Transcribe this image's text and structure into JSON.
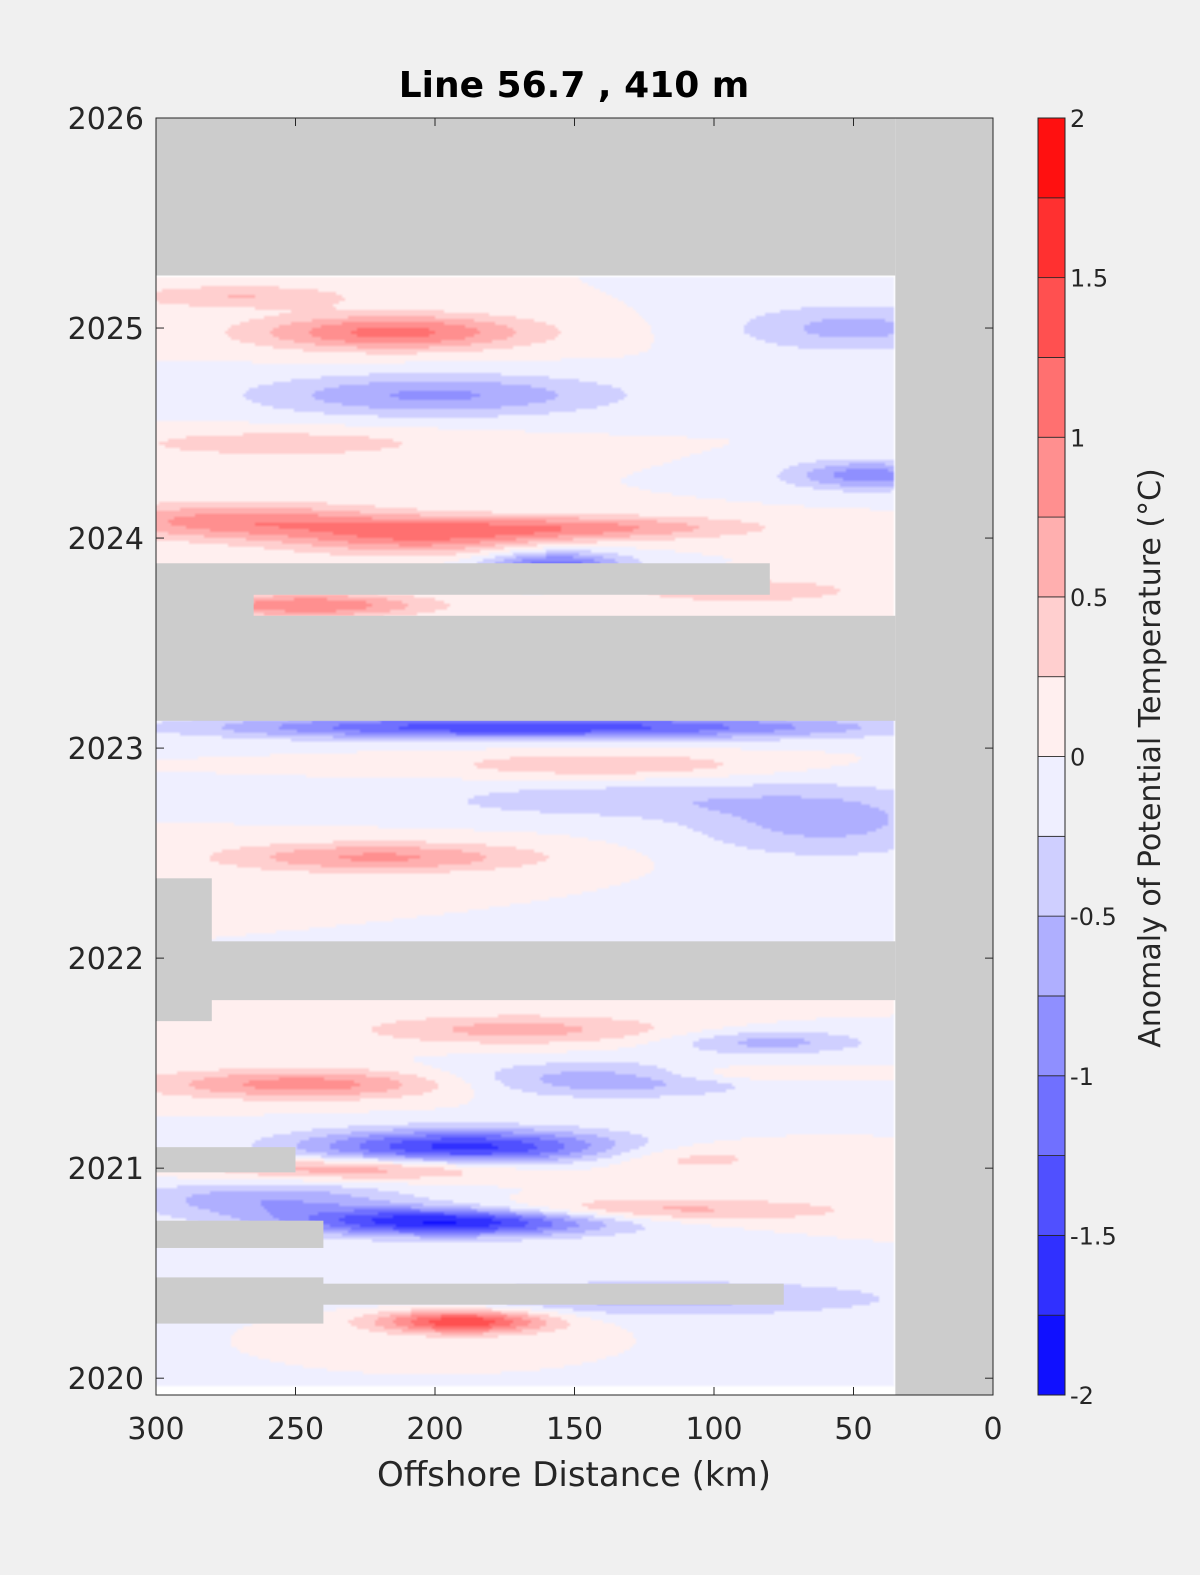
{
  "chart_data": {
    "type": "heatmap",
    "title": "Line 56.7 , 410 m",
    "xlabel": "Offshore Distance (km)",
    "ylabel": "",
    "xlim": [
      300,
      0
    ],
    "ylim": [
      2019.92,
      2026
    ],
    "x_reversed": true,
    "x_ticks": [
      300,
      250,
      200,
      150,
      100,
      50,
      0
    ],
    "y_ticks": [
      2020,
      2021,
      2022,
      2023,
      2024,
      2025,
      2026
    ],
    "colorbar": {
      "label": "Anomaly of Potential Temperature (°C)",
      "min": -2,
      "max": 2,
      "step": 0.25,
      "ticks": [
        -2,
        -1.5,
        -1,
        -0.5,
        0,
        0.5,
        1,
        1.5,
        2
      ],
      "low_color": "#0000ff",
      "mid_color": "#ffffff",
      "high_color": "#ff0000"
    },
    "nodata_color": "#cccccc",
    "data_extent": {
      "x": [
        35,
        300
      ],
      "y": [
        2019.96,
        2025.25
      ],
      "nodata_bands": [
        {
          "x": [
            35,
            300
          ],
          "y": [
            2025.25,
            2026
          ]
        },
        {
          "x": [
            0,
            35
          ],
          "y": [
            2019.92,
            2026
          ]
        },
        {
          "x": [
            35,
            300
          ],
          "y": [
            2023.13,
            2023.63
          ]
        },
        {
          "x": [
            80,
            300
          ],
          "y": [
            2023.73,
            2023.88
          ]
        },
        {
          "x": [
            265,
            300
          ],
          "y": [
            2023.6,
            2023.76
          ]
        },
        {
          "x": [
            35,
            300
          ],
          "y": [
            2021.8,
            2022.08
          ]
        },
        {
          "x": [
            280,
            300
          ],
          "y": [
            2021.7,
            2022.38
          ]
        },
        {
          "x": [
            250,
            300
          ],
          "y": [
            2020.98,
            2021.1
          ]
        },
        {
          "x": [
            240,
            300
          ],
          "y": [
            2020.62,
            2020.75
          ]
        },
        {
          "x": [
            75,
            300
          ],
          "y": [
            2020.35,
            2020.45
          ]
        },
        {
          "x": [
            240,
            300
          ],
          "y": [
            2020.26,
            2020.48
          ]
        }
      ]
    },
    "anomalies": [
      {
        "x": 195,
        "y": 2020.75,
        "value": -1.9,
        "sx": 40,
        "sy": 0.05
      },
      {
        "x": 190,
        "y": 2021.1,
        "value": -1.6,
        "sx": 40,
        "sy": 0.06
      },
      {
        "x": 157,
        "y": 2023.87,
        "value": -1.2,
        "sx": 18,
        "sy": 0.05
      },
      {
        "x": 200,
        "y": 2023.1,
        "value": -1.1,
        "sx": 60,
        "sy": 0.04
      },
      {
        "x": 110,
        "y": 2023.1,
        "value": -0.8,
        "sx": 60,
        "sy": 0.04
      },
      {
        "x": 200,
        "y": 2024.68,
        "value": -0.8,
        "sx": 45,
        "sy": 0.07
      },
      {
        "x": 45,
        "y": 2024.3,
        "value": -0.9,
        "sx": 20,
        "sy": 0.05
      },
      {
        "x": 50,
        "y": 2025.0,
        "value": -0.6,
        "sx": 30,
        "sy": 0.08
      },
      {
        "x": 60,
        "y": 2022.65,
        "value": -0.6,
        "sx": 35,
        "sy": 0.12
      },
      {
        "x": 140,
        "y": 2021.42,
        "value": -0.7,
        "sx": 40,
        "sy": 0.06
      },
      {
        "x": 120,
        "y": 2020.38,
        "value": -0.6,
        "sx": 60,
        "sy": 0.06
      },
      {
        "x": 80,
        "y": 2021.6,
        "value": -0.6,
        "sx": 25,
        "sy": 0.04
      },
      {
        "x": 260,
        "y": 2020.85,
        "value": -0.7,
        "sx": 35,
        "sy": 0.06
      },
      {
        "x": 140,
        "y": 2022.75,
        "value": -0.4,
        "sx": 50,
        "sy": 0.06
      },
      {
        "x": 215,
        "y": 2024.98,
        "value": 1.1,
        "sx": 35,
        "sy": 0.06
      },
      {
        "x": 270,
        "y": 2025.15,
        "value": 0.5,
        "sx": 30,
        "sy": 0.04
      },
      {
        "x": 270,
        "y": 2024.08,
        "value": 0.9,
        "sx": 40,
        "sy": 0.06
      },
      {
        "x": 205,
        "y": 2024.0,
        "value": 0.8,
        "sx": 35,
        "sy": 0.06
      },
      {
        "x": 150,
        "y": 2024.05,
        "value": 0.8,
        "sx": 45,
        "sy": 0.04
      },
      {
        "x": 245,
        "y": 2023.68,
        "value": 1.0,
        "sx": 30,
        "sy": 0.04
      },
      {
        "x": 255,
        "y": 2024.45,
        "value": 0.4,
        "sx": 45,
        "sy": 0.05
      },
      {
        "x": 220,
        "y": 2022.48,
        "value": 0.8,
        "sx": 40,
        "sy": 0.05
      },
      {
        "x": 140,
        "y": 2022.92,
        "value": 0.5,
        "sx": 40,
        "sy": 0.04
      },
      {
        "x": 245,
        "y": 2021.4,
        "value": 0.9,
        "sx": 40,
        "sy": 0.05
      },
      {
        "x": 170,
        "y": 2021.66,
        "value": 0.6,
        "sx": 40,
        "sy": 0.05
      },
      {
        "x": 190,
        "y": 2020.27,
        "value": 1.5,
        "sx": 22,
        "sy": 0.04
      },
      {
        "x": 225,
        "y": 2021.0,
        "value": 0.8,
        "sx": 40,
        "sy": 0.04
      },
      {
        "x": 135,
        "y": 2020.8,
        "value": 0.7,
        "sx": 55,
        "sy": 0.04
      },
      {
        "x": 90,
        "y": 2023.75,
        "value": 0.5,
        "sx": 30,
        "sy": 0.04
      },
      {
        "x": 110,
        "y": 2021.05,
        "value": 0.4,
        "sx": 25,
        "sy": 0.05
      },
      {
        "x": 90,
        "y": 2021.45,
        "value": 0.4,
        "sx": 25,
        "sy": 0.03
      }
    ]
  }
}
